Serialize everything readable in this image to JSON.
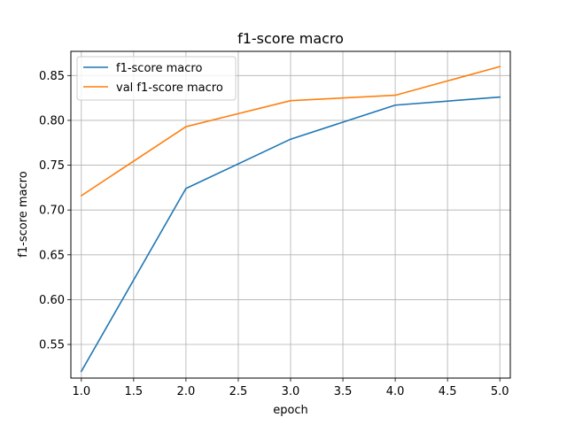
{
  "chart_data": {
    "type": "line",
    "title": "f1-score macro",
    "xlabel": "epoch",
    "ylabel": "f1-score macro",
    "x": [
      1,
      2,
      3,
      4,
      5
    ],
    "xlim": [
      0.9,
      5.1
    ],
    "ylim": [
      0.5125,
      0.877
    ],
    "xticks": [
      1.0,
      1.5,
      2.0,
      2.5,
      3.0,
      3.5,
      4.0,
      4.5,
      5.0
    ],
    "xtick_labels": [
      "1.0",
      "1.5",
      "2.0",
      "2.5",
      "3.0",
      "3.5",
      "4.0",
      "4.5",
      "5.0"
    ],
    "yticks": [
      0.55,
      0.6,
      0.65,
      0.7,
      0.75,
      0.8,
      0.85
    ],
    "ytick_labels": [
      "0.55",
      "0.60",
      "0.65",
      "0.70",
      "0.75",
      "0.80",
      "0.85"
    ],
    "grid": true,
    "legend_position": "top-left",
    "series": [
      {
        "name": "f1-score macro",
        "color": "#1f77b4",
        "values": [
          0.52,
          0.724,
          0.779,
          0.817,
          0.826
        ]
      },
      {
        "name": "val f1-score macro",
        "color": "#ff7f0e",
        "values": [
          0.716,
          0.793,
          0.822,
          0.828,
          0.86
        ]
      }
    ]
  }
}
